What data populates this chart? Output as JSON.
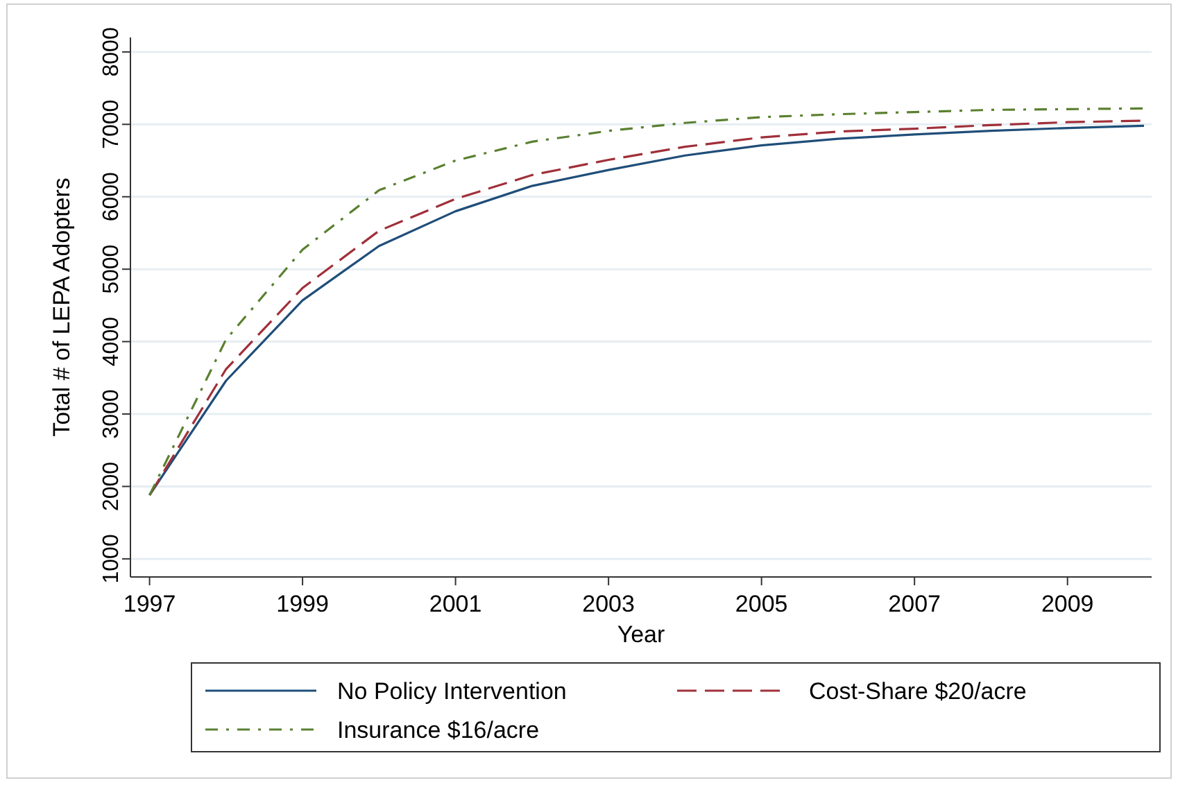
{
  "chart_data": {
    "type": "line",
    "xlabel": "Year",
    "ylabel": "Total # of LEPA Adopters",
    "x": [
      1997,
      1998,
      1999,
      2000,
      2001,
      2002,
      2003,
      2004,
      2005,
      2006,
      2007,
      2008,
      2009,
      2010
    ],
    "series": [
      {
        "name": "No Policy Intervention",
        "color": "#1f4e79",
        "line_style": "solid",
        "values": [
          1880,
          3460,
          4570,
          5320,
          5800,
          6150,
          6370,
          6570,
          6710,
          6800,
          6860,
          6910,
          6950,
          6980
        ]
      },
      {
        "name": "Cost-Share $20/acre",
        "color": "#a0303a",
        "line_style": "dashed",
        "values": [
          1880,
          3620,
          4740,
          5530,
          5970,
          6300,
          6510,
          6690,
          6820,
          6900,
          6940,
          6990,
          7030,
          7050
        ]
      },
      {
        "name": "Insurance $16/acre",
        "color": "#5a8030",
        "line_style": "dashdot",
        "values": [
          1880,
          4030,
          5270,
          6090,
          6500,
          6760,
          6910,
          7020,
          7100,
          7140,
          7170,
          7200,
          7210,
          7220
        ]
      }
    ],
    "xlim": [
      1996.75,
      2010.1
    ],
    "xticks": [
      1997,
      1999,
      2001,
      2003,
      2005,
      2007,
      2009
    ],
    "ylim": [
      750,
      8200
    ],
    "yticks": [
      1000,
      2000,
      3000,
      4000,
      5000,
      6000,
      7000,
      8000
    ],
    "grid": "y",
    "legend": "bottom",
    "marker": "none"
  }
}
